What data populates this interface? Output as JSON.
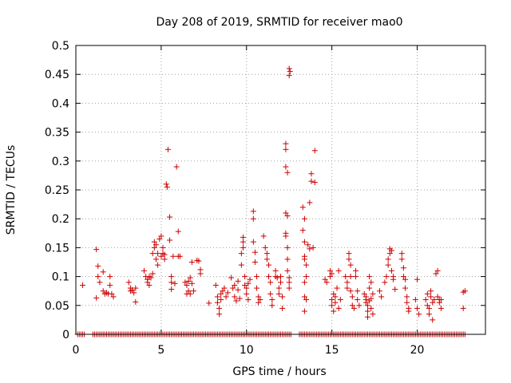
{
  "chart_data": {
    "type": "scatter",
    "title": "Day 208 of 2019, SRMTID for receiver mao0",
    "xlabel": "GPS time / hours",
    "ylabel": "SRMTID / TECUs",
    "xlim": [
      0,
      24
    ],
    "ylim": [
      0,
      0.5
    ],
    "xticks": [
      0,
      5,
      10,
      15,
      20
    ],
    "xtick_labels": [
      "0",
      "5",
      "10",
      "15",
      "20"
    ],
    "yticks": [
      0,
      0.05,
      0.1,
      0.15,
      0.2,
      0.25,
      0.3,
      0.35,
      0.4,
      0.45,
      0.5
    ],
    "ytick_labels": [
      "0",
      "0.05",
      "0.1",
      "0.15",
      "0.2",
      "0.25",
      "0.3",
      "0.35",
      "0.4",
      "0.45",
      "0.5"
    ],
    "grid": true,
    "marker": "+",
    "marker_color": "#cc0000",
    "series": [
      {
        "name": "SRMTID",
        "points": [
          [
            0.4,
            0.085
          ],
          [
            1.2,
            0.147
          ],
          [
            1.3,
            0.118
          ],
          [
            1.3,
            0.1
          ],
          [
            1.4,
            0.09
          ],
          [
            1.2,
            0.063
          ],
          [
            1.6,
            0.108
          ],
          [
            1.6,
            0.075
          ],
          [
            1.7,
            0.07
          ],
          [
            1.8,
            0.072
          ],
          [
            1.9,
            0.07
          ],
          [
            2.0,
            0.085
          ],
          [
            2.0,
            0.1
          ],
          [
            2.1,
            0.07
          ],
          [
            2.2,
            0.065
          ],
          [
            3.1,
            0.09
          ],
          [
            3.2,
            0.08
          ],
          [
            3.2,
            0.075
          ],
          [
            3.3,
            0.077
          ],
          [
            3.4,
            0.072
          ],
          [
            3.5,
            0.056
          ],
          [
            3.5,
            0.08
          ],
          [
            4.0,
            0.11
          ],
          [
            4.1,
            0.1
          ],
          [
            4.2,
            0.09
          ],
          [
            4.2,
            0.095
          ],
          [
            4.3,
            0.085
          ],
          [
            4.3,
            0.1
          ],
          [
            4.4,
            0.098
          ],
          [
            4.5,
            0.105
          ],
          [
            4.5,
            0.14
          ],
          [
            4.6,
            0.16
          ],
          [
            4.6,
            0.15
          ],
          [
            4.7,
            0.13
          ],
          [
            4.7,
            0.155
          ],
          [
            4.8,
            0.14
          ],
          [
            4.8,
            0.12
          ],
          [
            4.9,
            0.165
          ],
          [
            5.0,
            0.17
          ],
          [
            5.0,
            0.135
          ],
          [
            5.1,
            0.15
          ],
          [
            5.1,
            0.14
          ],
          [
            5.2,
            0.13
          ],
          [
            5.2,
            0.138
          ],
          [
            5.3,
            0.26
          ],
          [
            5.35,
            0.255
          ],
          [
            5.4,
            0.32
          ],
          [
            5.5,
            0.203
          ],
          [
            5.5,
            0.163
          ],
          [
            5.6,
            0.1
          ],
          [
            5.6,
            0.09
          ],
          [
            5.6,
            0.078
          ],
          [
            5.7,
            0.135
          ],
          [
            5.8,
            0.088
          ],
          [
            5.9,
            0.29
          ],
          [
            6.0,
            0.178
          ],
          [
            6.0,
            0.135
          ],
          [
            6.1,
            0.135
          ],
          [
            6.4,
            0.09
          ],
          [
            6.5,
            0.085
          ],
          [
            6.5,
            0.07
          ],
          [
            6.6,
            0.092
          ],
          [
            6.6,
            0.075
          ],
          [
            6.7,
            0.098
          ],
          [
            6.7,
            0.07
          ],
          [
            6.8,
            0.088
          ],
          [
            6.8,
            0.125
          ],
          [
            6.9,
            0.075
          ],
          [
            7.1,
            0.128
          ],
          [
            7.2,
            0.127
          ],
          [
            7.3,
            0.112
          ],
          [
            7.3,
            0.105
          ],
          [
            7.8,
            0.054
          ],
          [
            8.2,
            0.085
          ],
          [
            8.3,
            0.065
          ],
          [
            8.3,
            0.055
          ],
          [
            8.4,
            0.045
          ],
          [
            8.4,
            0.035
          ],
          [
            8.5,
            0.07
          ],
          [
            8.5,
            0.06
          ],
          [
            8.6,
            0.075
          ],
          [
            8.7,
            0.08
          ],
          [
            8.8,
            0.065
          ],
          [
            8.9,
            0.072
          ],
          [
            9.1,
            0.098
          ],
          [
            9.2,
            0.08
          ],
          [
            9.3,
            0.065
          ],
          [
            9.3,
            0.085
          ],
          [
            9.4,
            0.058
          ],
          [
            9.5,
            0.092
          ],
          [
            9.5,
            0.077
          ],
          [
            9.6,
            0.062
          ],
          [
            9.7,
            0.14
          ],
          [
            9.7,
            0.12
          ],
          [
            9.8,
            0.168
          ],
          [
            9.8,
            0.16
          ],
          [
            9.8,
            0.15
          ],
          [
            9.9,
            0.1
          ],
          [
            9.9,
            0.085
          ],
          [
            10.0,
            0.08
          ],
          [
            10.0,
            0.07
          ],
          [
            10.1,
            0.06
          ],
          [
            10.1,
            0.088
          ],
          [
            10.2,
            0.095
          ],
          [
            10.4,
            0.213
          ],
          [
            10.4,
            0.2
          ],
          [
            10.4,
            0.16
          ],
          [
            10.5,
            0.142
          ],
          [
            10.5,
            0.125
          ],
          [
            10.6,
            0.1
          ],
          [
            10.6,
            0.08
          ],
          [
            10.7,
            0.065
          ],
          [
            10.7,
            0.055
          ],
          [
            10.8,
            0.06
          ],
          [
            11.0,
            0.17
          ],
          [
            11.1,
            0.15
          ],
          [
            11.2,
            0.14
          ],
          [
            11.2,
            0.13
          ],
          [
            11.3,
            0.12
          ],
          [
            11.3,
            0.1
          ],
          [
            11.4,
            0.09
          ],
          [
            11.4,
            0.07
          ],
          [
            11.5,
            0.06
          ],
          [
            11.5,
            0.05
          ],
          [
            11.7,
            0.11
          ],
          [
            11.7,
            0.1
          ],
          [
            11.8,
            0.098
          ],
          [
            11.9,
            0.08
          ],
          [
            11.9,
            0.07
          ],
          [
            12.0,
            0.1
          ],
          [
            12.0,
            0.09
          ],
          [
            12.1,
            0.065
          ],
          [
            12.1,
            0.045
          ],
          [
            12.3,
            0.33
          ],
          [
            12.3,
            0.32
          ],
          [
            12.3,
            0.29
          ],
          [
            12.4,
            0.28
          ],
          [
            12.3,
            0.21
          ],
          [
            12.4,
            0.205
          ],
          [
            12.3,
            0.175
          ],
          [
            12.3,
            0.17
          ],
          [
            12.4,
            0.15
          ],
          [
            12.4,
            0.13
          ],
          [
            12.4,
            0.11
          ],
          [
            12.5,
            0.098
          ],
          [
            12.5,
            0.09
          ],
          [
            12.5,
            0.08
          ],
          [
            12.5,
            0.46
          ],
          [
            12.55,
            0.455
          ],
          [
            12.5,
            0.448
          ],
          [
            13.3,
            0.22
          ],
          [
            13.4,
            0.2
          ],
          [
            13.3,
            0.18
          ],
          [
            13.4,
            0.16
          ],
          [
            13.4,
            0.135
          ],
          [
            13.4,
            0.13
          ],
          [
            13.5,
            0.12
          ],
          [
            13.5,
            0.1
          ],
          [
            13.4,
            0.09
          ],
          [
            13.4,
            0.065
          ],
          [
            13.5,
            0.06
          ],
          [
            13.4,
            0.04
          ],
          [
            13.6,
            0.155
          ],
          [
            13.7,
            0.148
          ],
          [
            13.8,
            0.278
          ],
          [
            13.8,
            0.265
          ],
          [
            13.7,
            0.228
          ],
          [
            14.0,
            0.318
          ],
          [
            14.0,
            0.263
          ],
          [
            13.9,
            0.15
          ],
          [
            14.6,
            0.095
          ],
          [
            14.7,
            0.09
          ],
          [
            14.9,
            0.11
          ],
          [
            14.9,
            0.1
          ],
          [
            15.0,
            0.105
          ],
          [
            15.0,
            0.06
          ],
          [
            15.0,
            0.05
          ],
          [
            15.1,
            0.07
          ],
          [
            15.1,
            0.04
          ],
          [
            15.2,
            0.065
          ],
          [
            15.2,
            0.055
          ],
          [
            15.3,
            0.08
          ],
          [
            15.4,
            0.11
          ],
          [
            15.4,
            0.045
          ],
          [
            15.5,
            0.06
          ],
          [
            15.8,
            0.1
          ],
          [
            15.9,
            0.09
          ],
          [
            15.9,
            0.08
          ],
          [
            16.0,
            0.14
          ],
          [
            16.0,
            0.13
          ],
          [
            16.1,
            0.12
          ],
          [
            16.1,
            0.1
          ],
          [
            16.1,
            0.075
          ],
          [
            16.2,
            0.065
          ],
          [
            16.2,
            0.05
          ],
          [
            16.3,
            0.045
          ],
          [
            16.4,
            0.11
          ],
          [
            16.4,
            0.1
          ],
          [
            16.5,
            0.075
          ],
          [
            16.5,
            0.06
          ],
          [
            16.6,
            0.05
          ],
          [
            16.9,
            0.07
          ],
          [
            17.0,
            0.06
          ],
          [
            17.0,
            0.055
          ],
          [
            17.0,
            0.065
          ],
          [
            17.1,
            0.05
          ],
          [
            17.1,
            0.04
          ],
          [
            17.1,
            0.03
          ],
          [
            17.2,
            0.08
          ],
          [
            17.2,
            0.1
          ],
          [
            17.2,
            0.058
          ],
          [
            17.3,
            0.062
          ],
          [
            17.3,
            0.045
          ],
          [
            17.3,
            0.09
          ],
          [
            17.4,
            0.035
          ],
          [
            17.4,
            0.07
          ],
          [
            17.8,
            0.075
          ],
          [
            17.9,
            0.065
          ],
          [
            18.1,
            0.09
          ],
          [
            18.2,
            0.1
          ],
          [
            18.3,
            0.13
          ],
          [
            18.3,
            0.12
          ],
          [
            18.4,
            0.148
          ],
          [
            18.4,
            0.14
          ],
          [
            18.5,
            0.145
          ],
          [
            18.5,
            0.11
          ],
          [
            18.6,
            0.1
          ],
          [
            18.6,
            0.095
          ],
          [
            18.7,
            0.078
          ],
          [
            19.1,
            0.14
          ],
          [
            19.1,
            0.13
          ],
          [
            19.2,
            0.115
          ],
          [
            19.2,
            0.1
          ],
          [
            19.3,
            0.095
          ],
          [
            19.3,
            0.08
          ],
          [
            19.4,
            0.065
          ],
          [
            19.4,
            0.055
          ],
          [
            19.5,
            0.045
          ],
          [
            19.5,
            0.04
          ],
          [
            19.9,
            0.06
          ],
          [
            20.0,
            0.095
          ],
          [
            20.0,
            0.045
          ],
          [
            20.1,
            0.035
          ],
          [
            20.5,
            0.06
          ],
          [
            20.6,
            0.07
          ],
          [
            20.6,
            0.05
          ],
          [
            20.7,
            0.045
          ],
          [
            20.7,
            0.035
          ],
          [
            20.8,
            0.075
          ],
          [
            20.8,
            0.065
          ],
          [
            20.9,
            0.055
          ],
          [
            20.9,
            0.025
          ],
          [
            21.0,
            0.06
          ],
          [
            21.1,
            0.105
          ],
          [
            21.2,
            0.11
          ],
          [
            21.2,
            0.065
          ],
          [
            21.3,
            0.06
          ],
          [
            21.3,
            0.055
          ],
          [
            21.4,
            0.06
          ],
          [
            21.4,
            0.045
          ],
          [
            22.7,
            0.073
          ],
          [
            22.8,
            0.075
          ],
          [
            22.7,
            0.045
          ]
        ],
        "zero_bands_hours": [
          [
            0.1,
            0.5
          ],
          [
            1.0,
            12.6
          ],
          [
            13.1,
            22.8
          ]
        ]
      }
    ]
  }
}
